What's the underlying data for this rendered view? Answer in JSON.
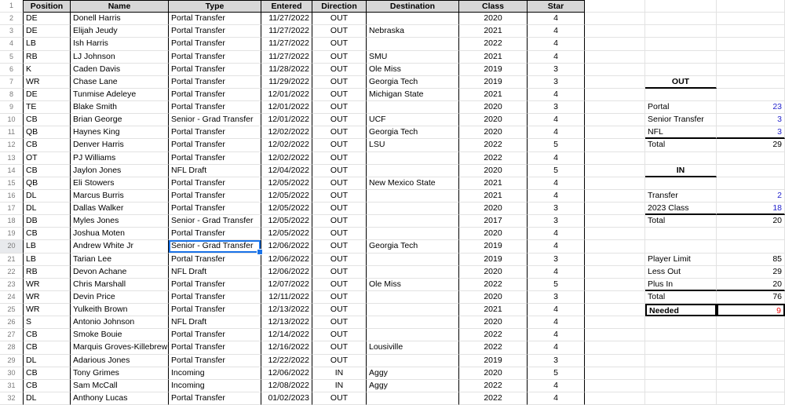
{
  "sheet": {
    "header_row_number": "1",
    "columns": [
      {
        "key": "position",
        "label": "Position"
      },
      {
        "key": "name",
        "label": "Name"
      },
      {
        "key": "type",
        "label": "Type"
      },
      {
        "key": "entered",
        "label": "Entered"
      },
      {
        "key": "direction",
        "label": "Direction"
      },
      {
        "key": "destination",
        "label": "Destination"
      },
      {
        "key": "class",
        "label": "Class"
      },
      {
        "key": "star",
        "label": "Star"
      }
    ],
    "rows": [
      {
        "n": 2,
        "position": "DE",
        "name": "Donell Harris",
        "type": "Portal Transfer",
        "entered": "11/27/2022",
        "direction": "OUT",
        "destination": "",
        "class": "2020",
        "star": "4"
      },
      {
        "n": 3,
        "position": "DE",
        "name": "Elijah Jeudy",
        "type": "Portal Transfer",
        "entered": "11/27/2022",
        "direction": "OUT",
        "destination": "Nebraska",
        "class": "2021",
        "star": "4"
      },
      {
        "n": 4,
        "position": "LB",
        "name": "Ish Harris",
        "type": "Portal Transfer",
        "entered": "11/27/2022",
        "direction": "OUT",
        "destination": "",
        "class": "2022",
        "star": "4"
      },
      {
        "n": 5,
        "position": "RB",
        "name": "LJ Johnson",
        "type": "Portal Transfer",
        "entered": "11/27/2022",
        "direction": "OUT",
        "destination": "SMU",
        "class": "2021",
        "star": "4"
      },
      {
        "n": 6,
        "position": "K",
        "name": "Caden Davis",
        "type": "Portal Transfer",
        "entered": "11/28/2022",
        "direction": "OUT",
        "destination": "Ole Miss",
        "class": "2019",
        "star": "3"
      },
      {
        "n": 7,
        "position": "WR",
        "name": "Chase Lane",
        "type": "Portal Transfer",
        "entered": "11/29/2022",
        "direction": "OUT",
        "destination": "Georgia Tech",
        "class": "2019",
        "star": "3"
      },
      {
        "n": 8,
        "position": "DE",
        "name": "Tunmise Adeleye",
        "type": "Portal Transfer",
        "entered": "12/01/2022",
        "direction": "OUT",
        "destination": "Michigan State",
        "class": "2021",
        "star": "4"
      },
      {
        "n": 9,
        "position": "TE",
        "name": "Blake Smith",
        "type": "Portal Transfer",
        "entered": "12/01/2022",
        "direction": "OUT",
        "destination": "",
        "class": "2020",
        "star": "3"
      },
      {
        "n": 10,
        "position": "CB",
        "name": "Brian George",
        "type": "Senior - Grad Transfer",
        "entered": "12/01/2022",
        "direction": "OUT",
        "destination": "UCF",
        "class": "2020",
        "star": "4"
      },
      {
        "n": 11,
        "position": "QB",
        "name": "Haynes King",
        "type": "Portal Transfer",
        "entered": "12/02/2022",
        "direction": "OUT",
        "destination": "Georgia Tech",
        "class": "2020",
        "star": "4"
      },
      {
        "n": 12,
        "position": "CB",
        "name": "Denver Harris",
        "type": "Portal Transfer",
        "entered": "12/02/2022",
        "direction": "OUT",
        "destination": "LSU",
        "class": "2022",
        "star": "5"
      },
      {
        "n": 13,
        "position": "OT",
        "name": "PJ Williams",
        "type": "Portal Transfer",
        "entered": "12/02/2022",
        "direction": "OUT",
        "destination": "",
        "class": "2022",
        "star": "4"
      },
      {
        "n": 14,
        "position": "CB",
        "name": "Jaylon Jones",
        "type": "NFL Draft",
        "entered": "12/04/2022",
        "direction": "OUT",
        "destination": "",
        "class": "2020",
        "star": "5"
      },
      {
        "n": 15,
        "position": "QB",
        "name": "Eli Stowers",
        "type": "Portal Transfer",
        "entered": "12/05/2022",
        "direction": "OUT",
        "destination": "New Mexico State",
        "class": "2021",
        "star": "4"
      },
      {
        "n": 16,
        "position": "DL",
        "name": "Marcus Burris",
        "type": "Portal Transfer",
        "entered": "12/05/2022",
        "direction": "OUT",
        "destination": "",
        "class": "2021",
        "star": "4"
      },
      {
        "n": 17,
        "position": "DL",
        "name": "Dallas Walker",
        "type": "Portal Transfer",
        "entered": "12/05/2022",
        "direction": "OUT",
        "destination": "",
        "class": "2020",
        "star": "3"
      },
      {
        "n": 18,
        "position": "DB",
        "name": "Myles Jones",
        "type": "Senior - Grad Transfer",
        "entered": "12/05/2022",
        "direction": "OUT",
        "destination": "",
        "class": "2017",
        "star": "3"
      },
      {
        "n": 19,
        "position": "CB",
        "name": "Joshua Moten",
        "type": "Portal Transfer",
        "entered": "12/05/2022",
        "direction": "OUT",
        "destination": "",
        "class": "2020",
        "star": "4"
      },
      {
        "n": 20,
        "position": "LB",
        "name": "Andrew White Jr",
        "type": "Senior - Grad Transfer",
        "entered": "12/06/2022",
        "direction": "OUT",
        "destination": "Georgia Tech",
        "class": "2019",
        "star": "4"
      },
      {
        "n": 21,
        "position": "LB",
        "name": "Tarian Lee",
        "type": "Portal Transfer",
        "entered": "12/06/2022",
        "direction": "OUT",
        "destination": "",
        "class": "2019",
        "star": "3"
      },
      {
        "n": 22,
        "position": "RB",
        "name": "Devon Achane",
        "type": "NFL Draft",
        "entered": "12/06/2022",
        "direction": "OUT",
        "destination": "",
        "class": "2020",
        "star": "4"
      },
      {
        "n": 23,
        "position": "WR",
        "name": "Chris Marshall",
        "type": "Portal Transfer",
        "entered": "12/07/2022",
        "direction": "OUT",
        "destination": "Ole Miss",
        "class": "2022",
        "star": "5"
      },
      {
        "n": 24,
        "position": "WR",
        "name": "Devin Price",
        "type": "Portal Transfer",
        "entered": "12/11/2022",
        "direction": "OUT",
        "destination": "",
        "class": "2020",
        "star": "3"
      },
      {
        "n": 25,
        "position": "WR",
        "name": "Yulkeith Brown",
        "type": "Portal Transfer",
        "entered": "12/13/2022",
        "direction": "OUT",
        "destination": "",
        "class": "2021",
        "star": "4"
      },
      {
        "n": 26,
        "position": "S",
        "name": "Antonio Johnson",
        "type": "NFL Draft",
        "entered": "12/13/2022",
        "direction": "OUT",
        "destination": "",
        "class": "2020",
        "star": "4"
      },
      {
        "n": 27,
        "position": "CB",
        "name": "Smoke Bouie",
        "type": "Portal Transfer",
        "entered": "12/14/2022",
        "direction": "OUT",
        "destination": "",
        "class": "2022",
        "star": "4"
      },
      {
        "n": 28,
        "position": "CB",
        "name": "Marquis Groves-Killebrew",
        "type": "Portal Transfer",
        "entered": "12/16/2022",
        "direction": "OUT",
        "destination": "Lousiville",
        "class": "2022",
        "star": "4"
      },
      {
        "n": 29,
        "position": "DL",
        "name": "Adarious Jones",
        "type": "Portal Transfer",
        "entered": "12/22/2022",
        "direction": "OUT",
        "destination": "",
        "class": "2019",
        "star": "3"
      },
      {
        "n": 30,
        "position": "CB",
        "name": "Tony Grimes",
        "type": "Incoming",
        "entered": "12/06/2022",
        "direction": "IN",
        "destination": "Aggy",
        "class": "2020",
        "star": "5"
      },
      {
        "n": 31,
        "position": "CB",
        "name": "Sam McCall",
        "type": "Incoming",
        "entered": "12/08/2022",
        "direction": "IN",
        "destination": "Aggy",
        "class": "2022",
        "star": "4"
      },
      {
        "n": 32,
        "position": "DL",
        "name": "Anthony Lucas",
        "type": "Portal Transfer",
        "entered": "01/02/2023",
        "direction": "OUT",
        "destination": "",
        "class": "2022",
        "star": "4"
      }
    ],
    "selected_cell": {
      "row": 20,
      "field": "type",
      "column_label": "Type",
      "value": "Senior - Grad Transfer"
    },
    "summary_cells": [
      {
        "row": 7,
        "kind": "title",
        "label": "OUT"
      },
      {
        "row": 9,
        "label": "Portal",
        "value": "23",
        "valueStyle": "blue"
      },
      {
        "row": 10,
        "label": "Senior Transfer",
        "value": "3",
        "valueStyle": "blue"
      },
      {
        "row": 11,
        "label": "NFL",
        "value": "3",
        "valueStyle": "blue",
        "rule": true
      },
      {
        "row": 12,
        "label": "Total",
        "value": "29"
      },
      {
        "row": 14,
        "kind": "title",
        "label": "IN"
      },
      {
        "row": 16,
        "label": "Transfer",
        "value": "2",
        "valueStyle": "blue"
      },
      {
        "row": 17,
        "label": "2023 Class",
        "value": "18",
        "valueStyle": "blue",
        "rule": true
      },
      {
        "row": 18,
        "label": "Total",
        "value": "20"
      },
      {
        "row": 21,
        "label": "Player Limit",
        "value": "85"
      },
      {
        "row": 22,
        "label": "Less Out",
        "value": "29"
      },
      {
        "row": 23,
        "label": "Plus In",
        "value": "20",
        "rule": true
      },
      {
        "row": 24,
        "label": "Total",
        "value": "76"
      },
      {
        "row": 25,
        "kind": "needed",
        "label": "Needed",
        "value": "9",
        "valueStyle": "red"
      }
    ],
    "colors": {
      "selection_blue": "#1a73e8",
      "summary_value_blue": "#2323cc",
      "needed_red": "#f30000",
      "header_bg": "#d7d7d7"
    }
  }
}
